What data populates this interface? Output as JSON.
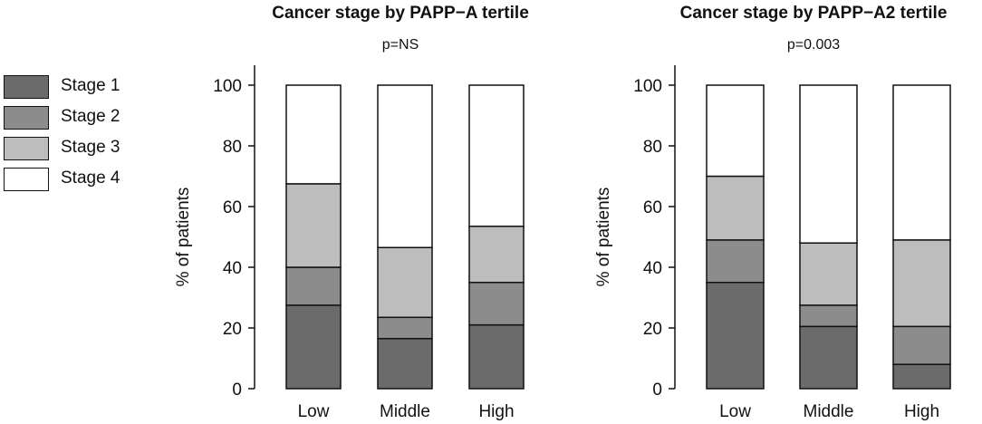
{
  "legend": [
    {
      "label": "Stage 1",
      "color": "#6b6b6b"
    },
    {
      "label": "Stage 2",
      "color": "#8c8c8c"
    },
    {
      "label": "Stage 3",
      "color": "#bdbdbd"
    },
    {
      "label": "Stage 4",
      "color": "#ffffff"
    }
  ],
  "chart_data": [
    {
      "type": "bar",
      "stacked": true,
      "title": "Cancer stage by PAPP−A tertile",
      "subtitle": "p=NS",
      "xlabel": "",
      "ylabel": "% of patients",
      "ylim": [
        0,
        100
      ],
      "yticks": [
        0,
        20,
        40,
        60,
        80,
        100
      ],
      "categories": [
        "Low",
        "Middle",
        "High"
      ],
      "series": [
        {
          "name": "Stage 1",
          "values": [
            27.5,
            16.5,
            21
          ]
        },
        {
          "name": "Stage 2",
          "values": [
            12.5,
            7,
            14
          ]
        },
        {
          "name": "Stage 3",
          "values": [
            27.5,
            23,
            18.5
          ]
        },
        {
          "name": "Stage 4",
          "values": [
            32.5,
            53.5,
            46.5
          ]
        }
      ]
    },
    {
      "type": "bar",
      "stacked": true,
      "title": "Cancer stage by PAPP−A2 tertile",
      "subtitle": "p=0.003",
      "xlabel": "",
      "ylabel": "% of patients",
      "ylim": [
        0,
        100
      ],
      "yticks": [
        0,
        20,
        40,
        60,
        80,
        100
      ],
      "categories": [
        "Low",
        "Middle",
        "High"
      ],
      "series": [
        {
          "name": "Stage 1",
          "values": [
            35,
            20.5,
            8
          ]
        },
        {
          "name": "Stage 2",
          "values": [
            14,
            7,
            12.5
          ]
        },
        {
          "name": "Stage 3",
          "values": [
            21,
            20.5,
            28.5
          ]
        },
        {
          "name": "Stage 4",
          "values": [
            30,
            52,
            51
          ]
        }
      ]
    }
  ]
}
